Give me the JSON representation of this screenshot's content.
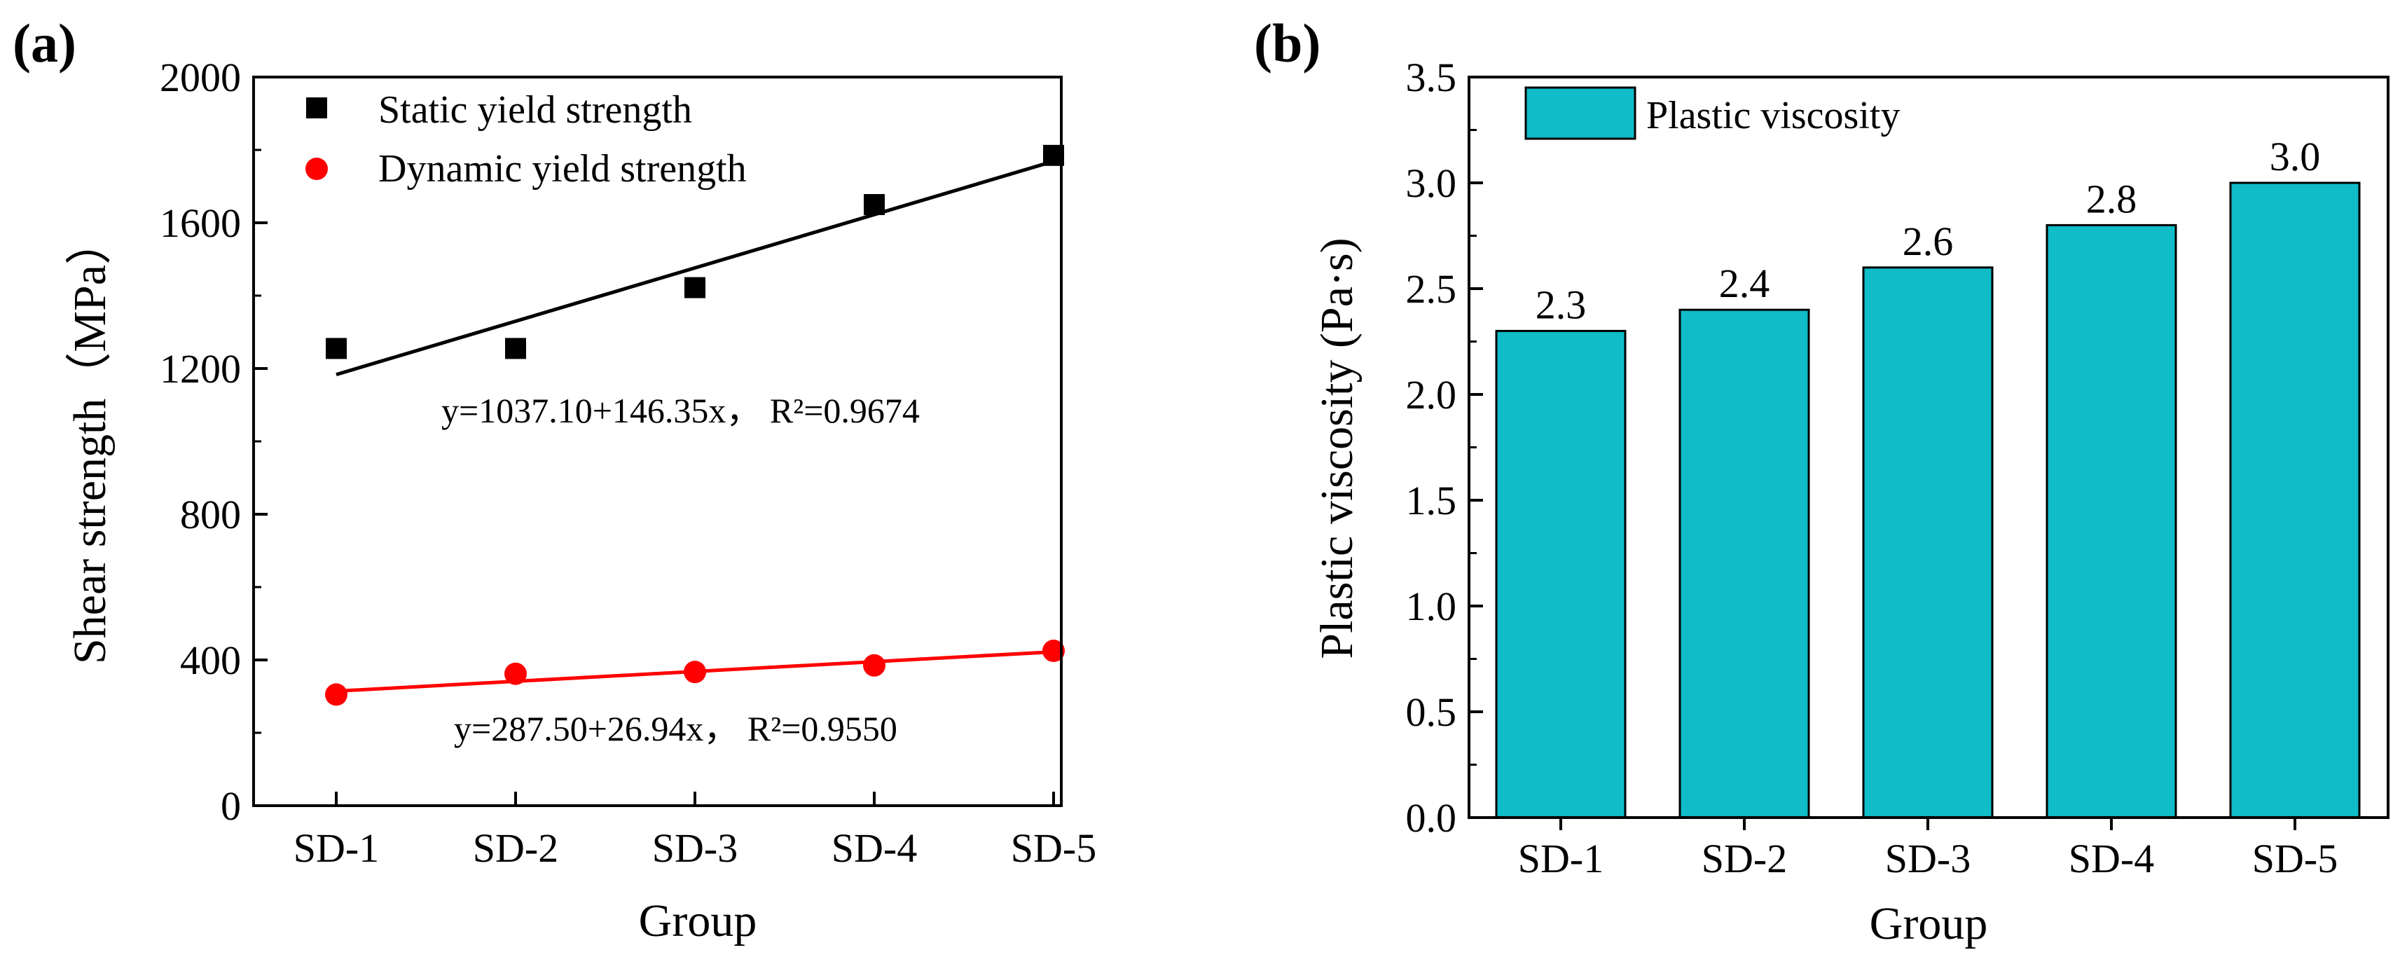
{
  "chart_data": [
    {
      "panel": "(a)",
      "type": "scatter",
      "xlabel": "Group",
      "ylabel": "Shear strength（MPa）",
      "categories": [
        "SD-1",
        "SD-2",
        "SD-3",
        "SD-4",
        "SD-5"
      ],
      "ylim": [
        0,
        2000
      ],
      "yticks": [
        0,
        400,
        800,
        1200,
        1600,
        2000
      ],
      "series": [
        {
          "name": "Static yield strength",
          "marker": "square",
          "color": "#000000",
          "values": [
            1255,
            1255,
            1422,
            1650,
            1785
          ],
          "fit": {
            "intercept": 1037.1,
            "slope": 146.35,
            "label": "y=1037.10+146.35x， R²=0.9674"
          }
        },
        {
          "name": "Dynamic yield strength",
          "marker": "circle",
          "color": "#ff0000",
          "values": [
            305,
            362,
            367,
            385,
            425
          ],
          "fit": {
            "intercept": 287.5,
            "slope": 26.94,
            "label": "y=287.50+26.94x， R²=0.9550"
          }
        }
      ]
    },
    {
      "panel": "(b)",
      "type": "bar",
      "xlabel": "Group",
      "ylabel": "Plastic viscosity (Pa·s)",
      "categories": [
        "SD-1",
        "SD-2",
        "SD-3",
        "SD-4",
        "SD-5"
      ],
      "ylim": [
        0,
        3.5
      ],
      "yticks": [
        "0.0",
        "0.5",
        "1.0",
        "1.5",
        "2.0",
        "2.5",
        "3.0",
        "3.5"
      ],
      "series": [
        {
          "name": "Plastic viscosity",
          "color": "#0fbcc8",
          "values": [
            2.3,
            2.4,
            2.6,
            2.8,
            3.0
          ],
          "labels": [
            "2.3",
            "2.4",
            "2.6",
            "2.8",
            "3.0"
          ]
        }
      ]
    }
  ]
}
